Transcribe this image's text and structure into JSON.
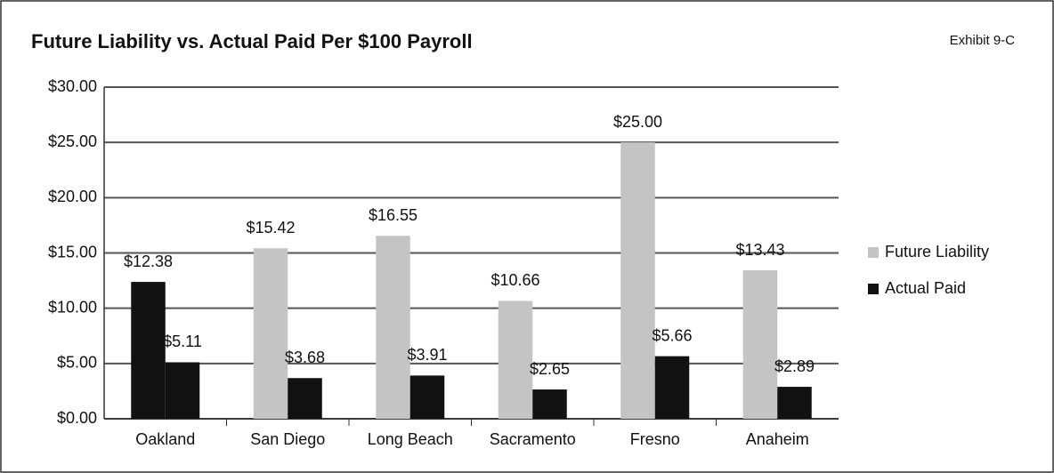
{
  "chart_data": {
    "type": "bar",
    "title": "Future Liability vs. Actual Paid Per $100 Payroll",
    "annotation": "Exhibit 9-C",
    "categories": [
      "Oakland",
      "San Diego",
      "Long Beach",
      "Sacramento",
      "Fresno",
      "Anaheim"
    ],
    "series": [
      {
        "name": "Future Liability",
        "color": "#c4c4c4",
        "colors": [
          "#111111",
          "#c4c4c4",
          "#c4c4c4",
          "#c4c4c4",
          "#c4c4c4",
          "#c4c4c4"
        ],
        "values": [
          12.38,
          15.42,
          16.55,
          10.66,
          25.0,
          13.43
        ],
        "value_labels": [
          "$12.38",
          "$15.42",
          "$16.55",
          "$10.66",
          "$25.00",
          "$13.43"
        ]
      },
      {
        "name": "Actual Paid",
        "color": "#111111",
        "values": [
          5.11,
          3.68,
          3.91,
          2.65,
          5.66,
          2.89
        ],
        "value_labels": [
          "$5.11",
          "$3.68",
          "$3.91",
          "$2.65",
          "$5.66",
          "$2.89"
        ]
      }
    ],
    "ylim": [
      0,
      30
    ],
    "yticks": [
      {
        "value": 0,
        "label": "$0.00"
      },
      {
        "value": 5,
        "label": "$5.00"
      },
      {
        "value": 10,
        "label": "$10.00"
      },
      {
        "value": 15,
        "label": "$15.00"
      },
      {
        "value": 20,
        "label": "$20.00"
      },
      {
        "value": 25,
        "label": "$25.00"
      },
      {
        "value": 30,
        "label": "$30.00"
      }
    ],
    "grid": true,
    "legend": "right"
  }
}
